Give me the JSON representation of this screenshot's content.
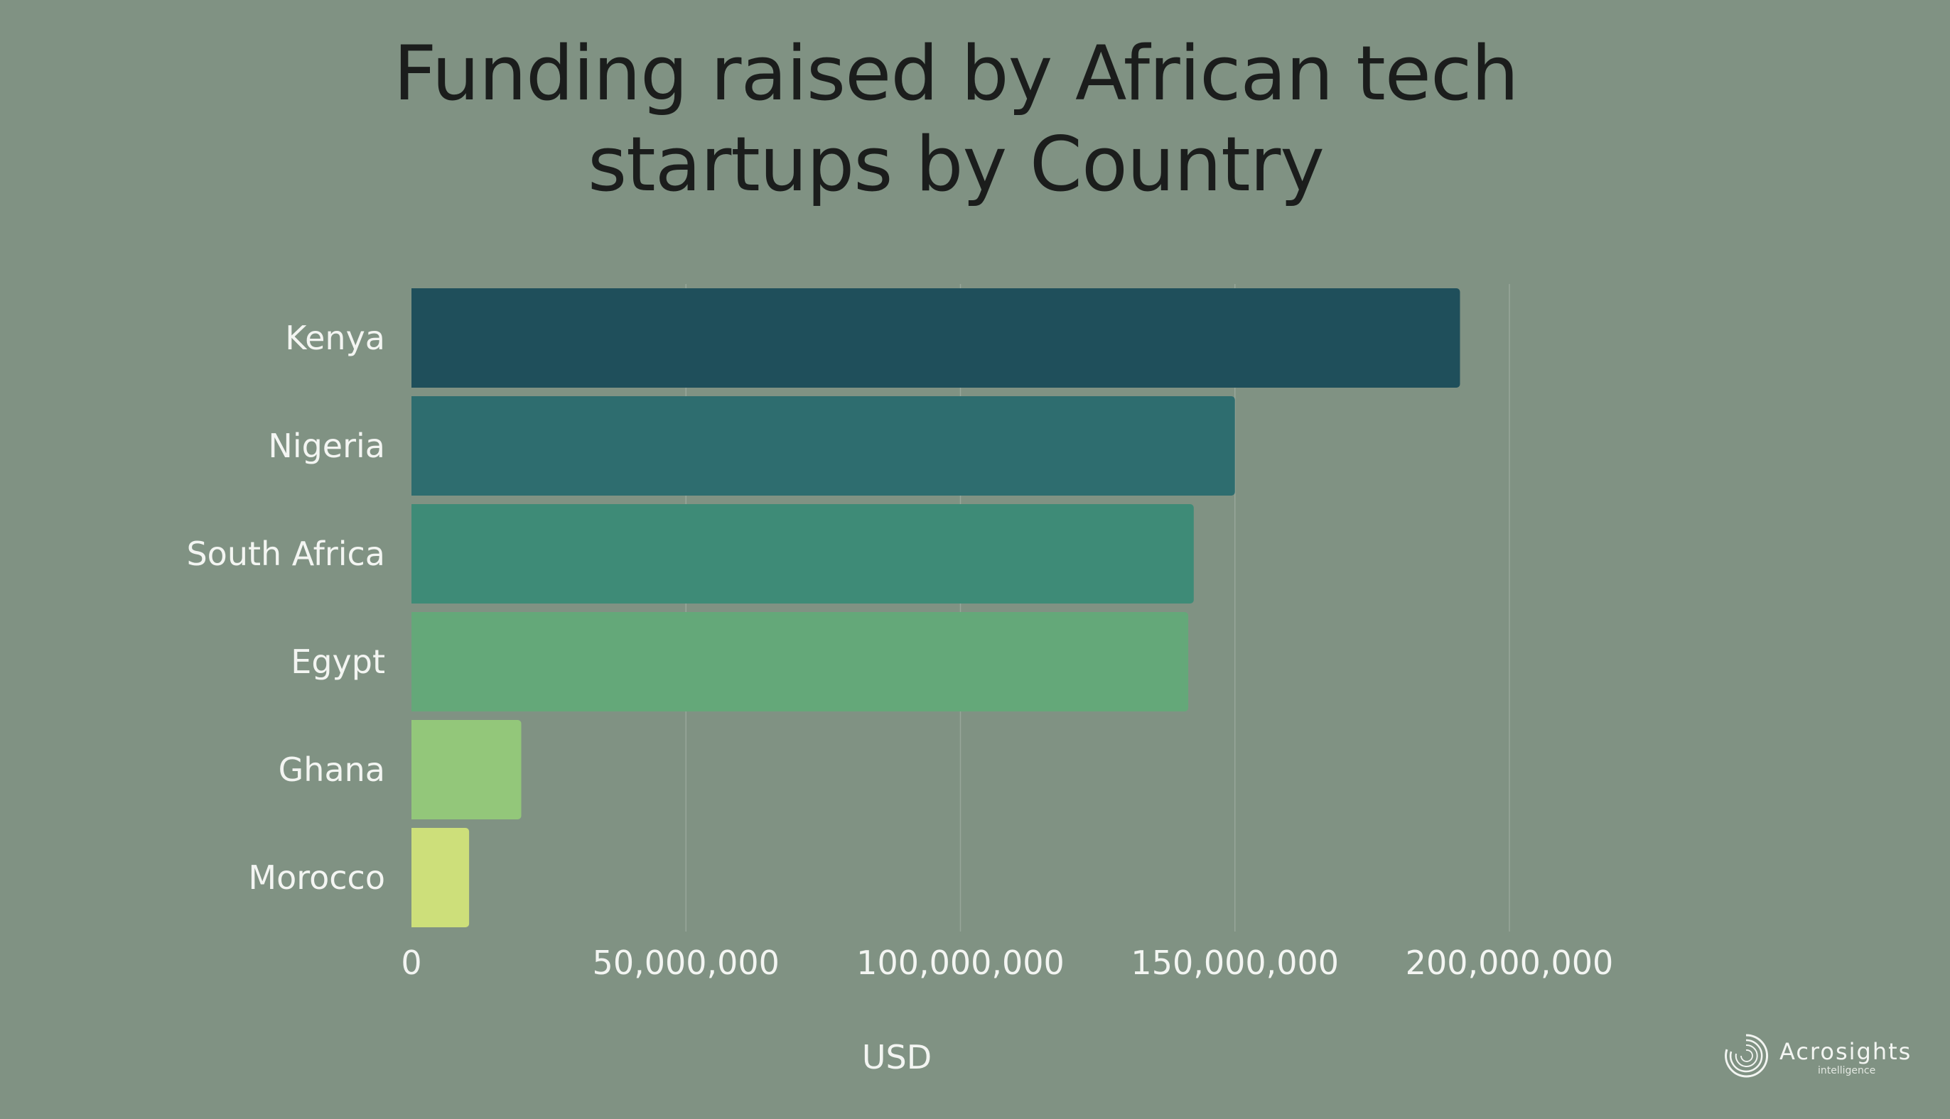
{
  "chart_data": {
    "type": "bar",
    "orientation": "horizontal",
    "title_lines": [
      "Funding raised by African tech",
      "startups by Country"
    ],
    "categories": [
      "Kenya",
      "Nigeria",
      "South Africa",
      "Egypt",
      "Ghana",
      "Morocco"
    ],
    "values": [
      191000000,
      150000000,
      142500000,
      141500000,
      20000000,
      10500000
    ],
    "colors": [
      "#1f4f5b",
      "#2e6d6f",
      "#3e8b77",
      "#64a879",
      "#93c77a",
      "#cddf7a"
    ],
    "xlabel": "USD",
    "xlim": [
      0,
      200000000
    ],
    "xticks": [
      0,
      50000000,
      100000000,
      150000000,
      200000000
    ],
    "xtick_labels": [
      "0",
      "50,000,000",
      "100,000,000",
      "150,000,000",
      "200,000,000"
    ],
    "grid": true,
    "legend": "none"
  },
  "branding": {
    "logo_text": "Acrosights",
    "logo_subtext": "intelligence"
  },
  "colors": {
    "background": "#809283",
    "gridline": "#97a69a",
    "text_light": "#f3f5f2",
    "title": "#1b1d1c"
  }
}
